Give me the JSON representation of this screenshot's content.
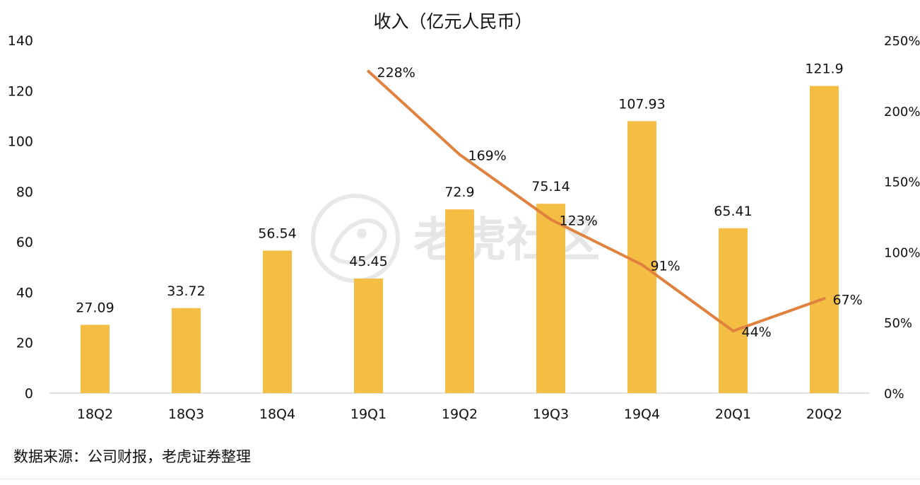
{
  "chart_data": {
    "type": "bar",
    "title": "收入（亿元人民币）",
    "categories": [
      "18Q2",
      "18Q3",
      "18Q4",
      "19Q1",
      "19Q2",
      "19Q3",
      "19Q4",
      "20Q1",
      "20Q2"
    ],
    "series": [
      {
        "type": "bar",
        "values": [
          27.09,
          33.72,
          56.54,
          45.45,
          72.9,
          75.14,
          107.93,
          65.41,
          121.9
        ],
        "labels": [
          "27.09",
          "33.72",
          "56.54",
          "45.45",
          "72.9",
          "75.14",
          "107.93",
          "65.41",
          "121.9"
        ],
        "axis": "left"
      },
      {
        "type": "line",
        "values": [
          null,
          null,
          null,
          228,
          169,
          123,
          91,
          44,
          67
        ],
        "labels": [
          "",
          "",
          "",
          "228%",
          "169%",
          "123%",
          "91%",
          "44%",
          "67%"
        ],
        "axis": "right"
      }
    ],
    "y_left": {
      "range": [
        0,
        140
      ],
      "ticks": [
        "0",
        "20",
        "40",
        "60",
        "80",
        "100",
        "120",
        "140"
      ]
    },
    "y_right": {
      "range": [
        0,
        250
      ],
      "ticks": [
        "0%",
        "50%",
        "100%",
        "150%",
        "200%",
        "250%"
      ]
    },
    "grid": false,
    "legend": "none",
    "colors": {
      "bar": "#F4BE45",
      "line": "#E0823E",
      "text": "#111111",
      "axis": "#d9d9d9",
      "watermark": "#dcdcdc"
    }
  },
  "watermark": {
    "text": "老虎社区"
  },
  "footer": {
    "source": "数据来源：公司财报，老虎证券整理"
  }
}
